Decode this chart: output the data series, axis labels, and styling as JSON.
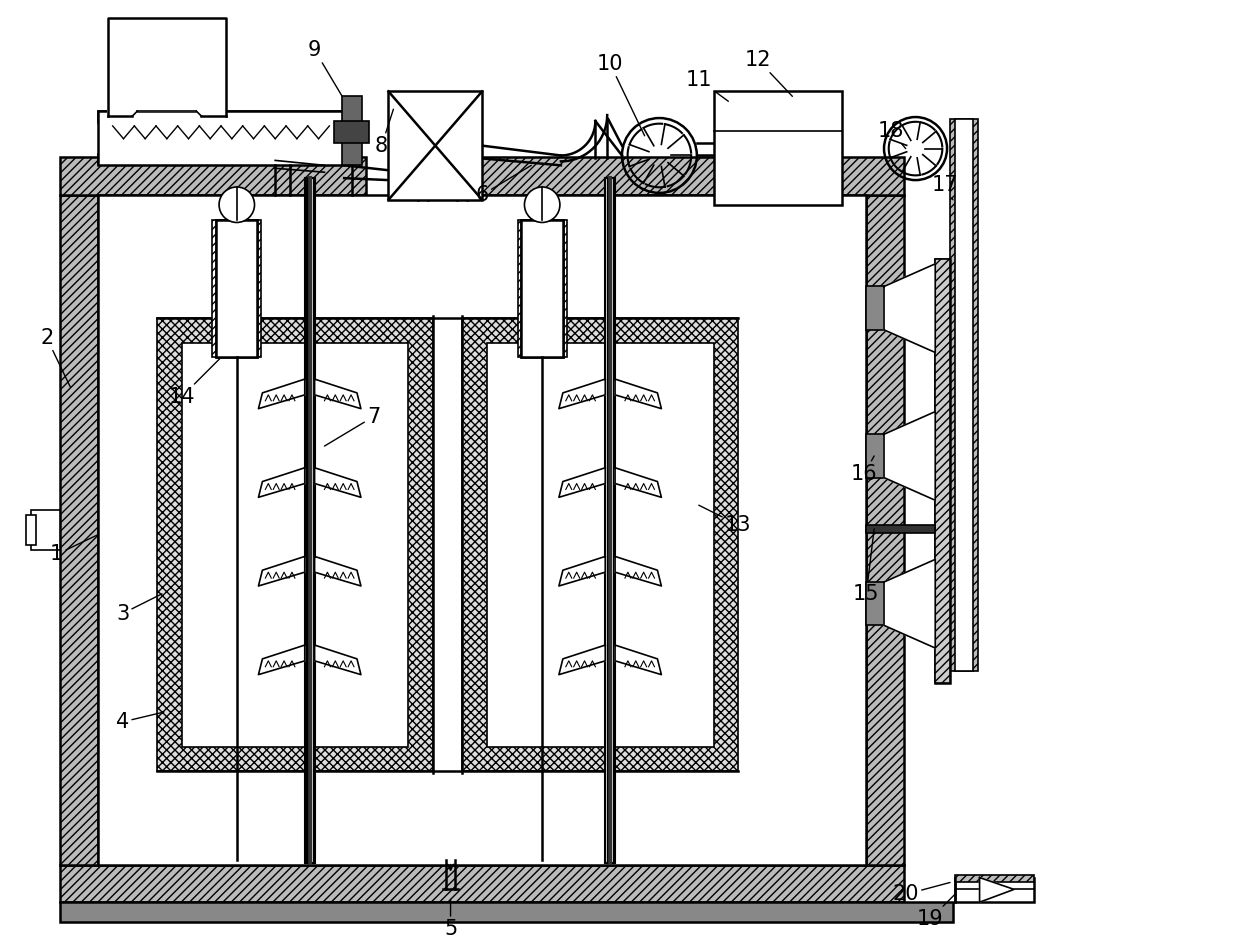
{
  "bg_color": "#ffffff",
  "lw_main": 1.8,
  "lw_thin": 1.2,
  "lw_thick": 2.5,
  "font_size": 15,
  "hatch_wall": "////",
  "hatch_cross": "xxxx",
  "gray_light": "#cccccc",
  "gray_med": "#aaaaaa",
  "gray_dark": "#666666"
}
